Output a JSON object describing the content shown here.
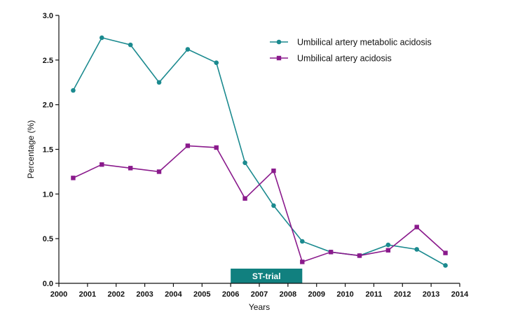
{
  "chart_data": {
    "type": "line",
    "xlabel": "Years",
    "ylabel": "Percentage (%)",
    "xlim": [
      2000,
      2014
    ],
    "ylim": [
      0,
      3.0
    ],
    "xticks": [
      "2000",
      "2001",
      "2002",
      "2003",
      "2004",
      "2005",
      "2006",
      "2007",
      "2008",
      "2009",
      "2010",
      "2011",
      "2012",
      "2013",
      "2014"
    ],
    "yticks": [
      "0.0",
      "0.5",
      "1.0",
      "1.5",
      "2.0",
      "2.5",
      "3.0"
    ],
    "grid": false,
    "legend_position": "top-right",
    "annotation": {
      "label": "ST-trial",
      "x_start": 2006,
      "x_end": 2008.5,
      "color": "#11807f"
    },
    "series": [
      {
        "name": "Umbilical artery metabolic acidosis",
        "color": "#1b8a8f",
        "marker": "circle",
        "x": [
          2000.5,
          2001.5,
          2002.5,
          2003.5,
          2004.5,
          2005.5,
          2006.5,
          2007.5,
          2008.5,
          2009.5,
          2010.5,
          2011.5,
          2012.5,
          2013.5
        ],
        "y": [
          2.16,
          2.75,
          2.67,
          2.25,
          2.62,
          2.47,
          1.35,
          0.87,
          0.47,
          0.35,
          0.31,
          0.43,
          0.38,
          0.2
        ]
      },
      {
        "name": "Umbilical artery acidosis",
        "color": "#8a1a8c",
        "marker": "square",
        "x": [
          2000.5,
          2001.5,
          2002.5,
          2003.5,
          2004.5,
          2005.5,
          2006.5,
          2007.5,
          2008.5,
          2009.5,
          2010.5,
          2011.5,
          2012.5,
          2013.5
        ],
        "y": [
          1.18,
          1.33,
          1.29,
          1.25,
          1.54,
          1.52,
          0.95,
          1.26,
          0.24,
          0.35,
          0.31,
          0.37,
          0.63,
          0.34
        ]
      }
    ]
  }
}
